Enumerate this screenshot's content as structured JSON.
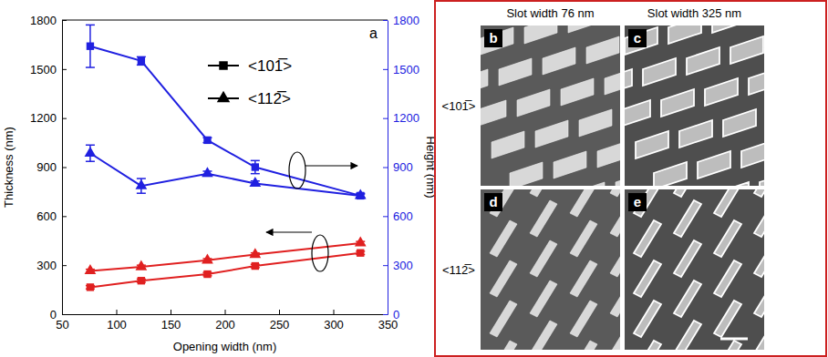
{
  "chart_data": {
    "type": "line",
    "panel_label": "a",
    "x_label": "Opening width (nm)",
    "y_label": "Thickness (nm)",
    "y2_label": "Height (nm)",
    "x": [
      76,
      123,
      184,
      228,
      325
    ],
    "xlim": [
      50,
      350
    ],
    "xticks": [
      50,
      100,
      150,
      200,
      250,
      300,
      350
    ],
    "ylim": [
      0,
      1800
    ],
    "yticks": [
      0,
      300,
      600,
      900,
      1200,
      1500,
      1800
    ],
    "y2lim": [
      0,
      1800
    ],
    "y2ticks": [
      0,
      300,
      600,
      900,
      1200,
      1500,
      1800
    ],
    "legend": "top-right",
    "series": [
      {
        "name": "<101̅>",
        "color": "#2020e0",
        "marker": "square",
        "axis": "y2",
        "values": [
          1640,
          1550,
          1065,
          900,
          725
        ],
        "errors": [
          130,
          25,
          15,
          40,
          15
        ]
      },
      {
        "name": "<112̅>",
        "color": "#2020e0",
        "marker": "triangle",
        "axis": "y2",
        "values": [
          985,
          785,
          860,
          800,
          725
        ],
        "errors": [
          50,
          45,
          15,
          15,
          10
        ]
      },
      {
        "name": "<101̅>",
        "color": "#e02020",
        "marker": "square",
        "axis": "y",
        "values": [
          165,
          205,
          245,
          295,
          375
        ],
        "errors": [
          10,
          10,
          10,
          10,
          10
        ]
      },
      {
        "name": "<112̅>",
        "color": "#e02020",
        "marker": "triangle",
        "axis": "y",
        "values": [
          265,
          290,
          330,
          365,
          435
        ],
        "errors": [
          10,
          10,
          10,
          10,
          10
        ]
      }
    ]
  },
  "panels": {
    "column_titles": [
      "Slot width 76 nm",
      "Slot width 325 nm"
    ],
    "row_labels": [
      "<101̅>",
      "<112̅>"
    ],
    "images": [
      {
        "label": "b"
      },
      {
        "label": "c"
      },
      {
        "label": "d"
      },
      {
        "label": "e"
      }
    ]
  }
}
